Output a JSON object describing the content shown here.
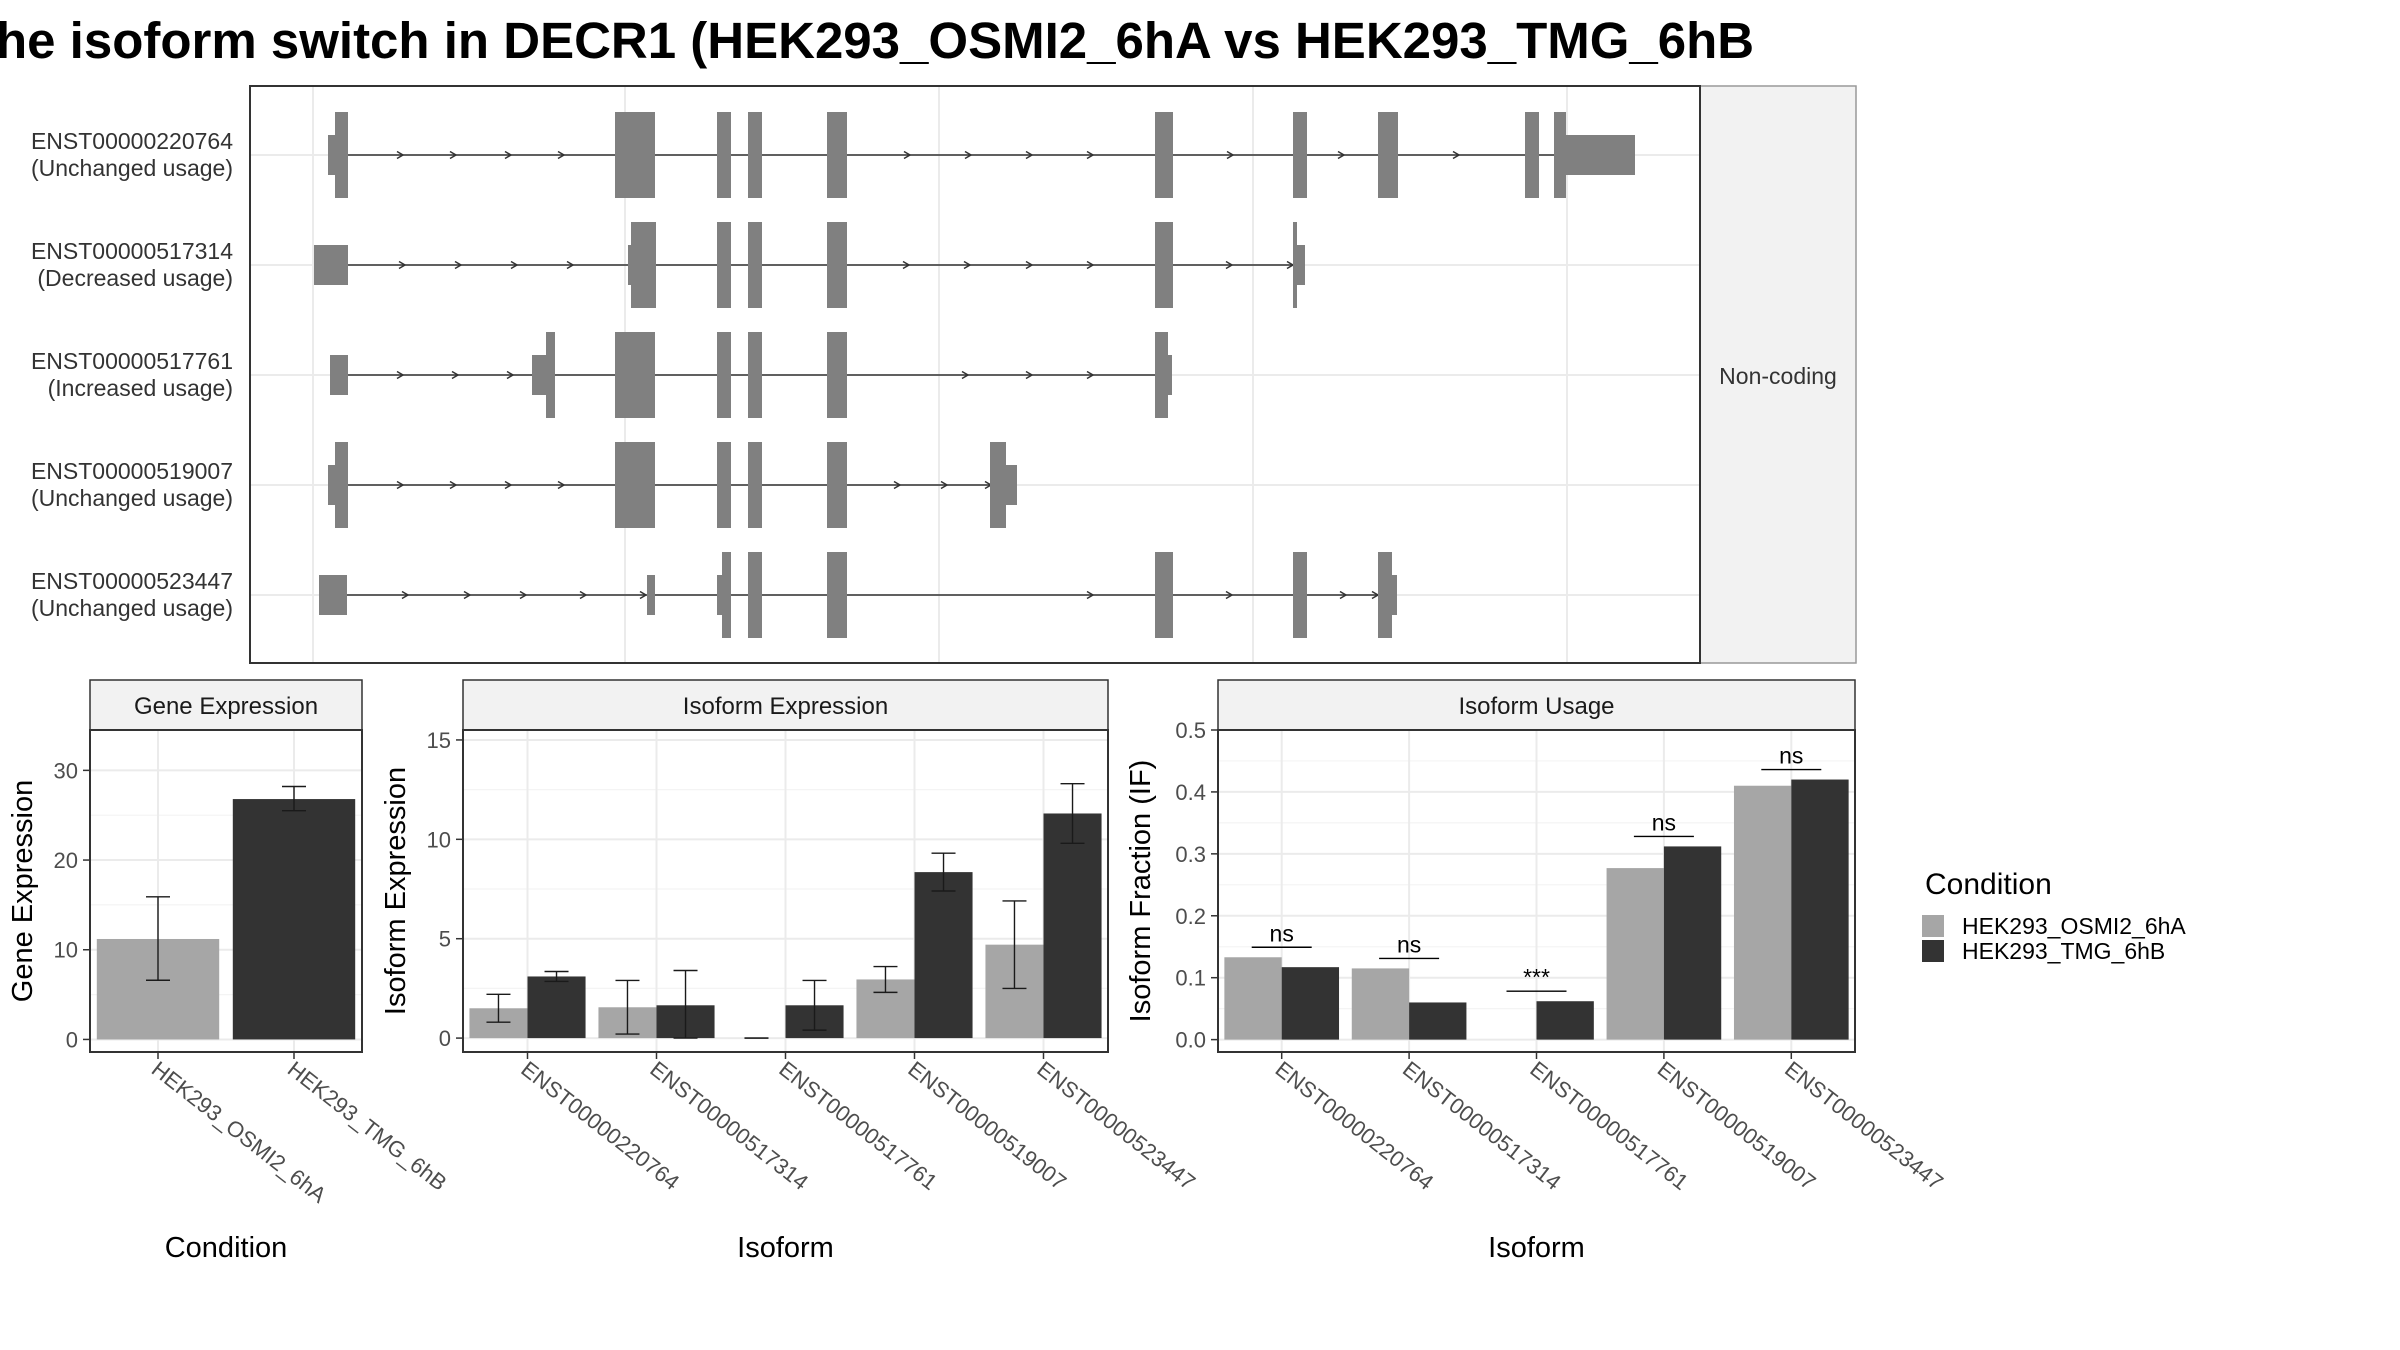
{
  "title": "he isoform switch in DECR1 (HEK293_OSMI2_6hA vs HEK293_TMG_6hB",
  "colors": {
    "condA": "#a6a6a6",
    "condB": "#333333",
    "exon": "#808080",
    "grid": "#ebebeb",
    "strip": "#f2f2f2"
  },
  "chart_data": [
    {
      "type": "gene-structure",
      "facet_label": "Non-coding",
      "transcripts": [
        {
          "id": "ENST00000220764",
          "usage": "(Unchanged usage)"
        },
        {
          "id": "ENST00000517314",
          "usage": "(Decreased usage)"
        },
        {
          "id": "ENST00000517761",
          "usage": "(Increased usage)"
        },
        {
          "id": "ENST00000519007",
          "usage": "(Unchanged usage)"
        },
        {
          "id": "ENST00000523447",
          "usage": "(Unchanged usage)"
        }
      ]
    },
    {
      "type": "bar",
      "title": "Gene Expression",
      "xlabel": "Condition",
      "ylabel": "Gene Expression",
      "categories": [
        "HEK293_OSMI2_6hA",
        "HEK293_TMG_6hB"
      ],
      "values": [
        11.2,
        26.8
      ],
      "error_low": [
        6.6,
        25.5
      ],
      "error_high": [
        15.9,
        28.2
      ],
      "ylim": [
        -1.4,
        34.5
      ],
      "ticks": [
        0,
        10,
        20,
        30
      ],
      "grid": true
    },
    {
      "type": "bar",
      "title": "Isoform Expression",
      "xlabel": "Isoform",
      "ylabel": "Isoform Expression",
      "categories": [
        "ENST00000220764",
        "ENST00000517314",
        "ENST00000517761",
        "ENST00000519007",
        "ENST00000523447"
      ],
      "ylim": [
        -0.7,
        15.5
      ],
      "ticks": [
        0,
        5,
        10,
        15
      ],
      "grid": true,
      "series": [
        {
          "name": "HEK293_OSMI2_6hA",
          "values": [
            1.5,
            1.55,
            0.0,
            2.95,
            4.7
          ],
          "error_low": [
            0.8,
            0.2,
            0.0,
            2.3,
            2.5
          ],
          "error_high": [
            2.2,
            2.9,
            0.0,
            3.6,
            6.9
          ]
        },
        {
          "name": "HEK293_TMG_6hB",
          "values": [
            3.1,
            1.65,
            1.65,
            8.35,
            11.3
          ],
          "error_low": [
            2.85,
            0.0,
            0.4,
            7.4,
            9.8
          ],
          "error_high": [
            3.35,
            3.4,
            2.9,
            9.3,
            12.8
          ]
        }
      ]
    },
    {
      "type": "bar",
      "title": "Isoform Usage",
      "xlabel": "Isoform",
      "ylabel": "Isoform Fraction (IF)",
      "categories": [
        "ENST00000220764",
        "ENST00000517314",
        "ENST00000517761",
        "ENST00000519007",
        "ENST00000523447"
      ],
      "ylim": [
        -0.02,
        0.5
      ],
      "ticks": [
        0.0,
        0.1,
        0.2,
        0.3,
        0.4,
        0.5
      ],
      "tick_labels": [
        "0.0",
        "0.1",
        "0.2",
        "0.3",
        "0.4",
        "0.5"
      ],
      "grid": true,
      "series": [
        {
          "name": "HEK293_OSMI2_6hA",
          "values": [
            0.133,
            0.115,
            0.0,
            0.277,
            0.41
          ]
        },
        {
          "name": "HEK293_TMG_6hB",
          "values": [
            0.117,
            0.06,
            0.062,
            0.312,
            0.42
          ]
        }
      ],
      "significance": [
        "ns",
        "ns",
        "***",
        "ns",
        "ns"
      ]
    }
  ],
  "legend": {
    "title": "Condition",
    "position": "right",
    "entries": [
      "HEK293_OSMI2_6hA",
      "HEK293_TMG_6hB"
    ]
  }
}
